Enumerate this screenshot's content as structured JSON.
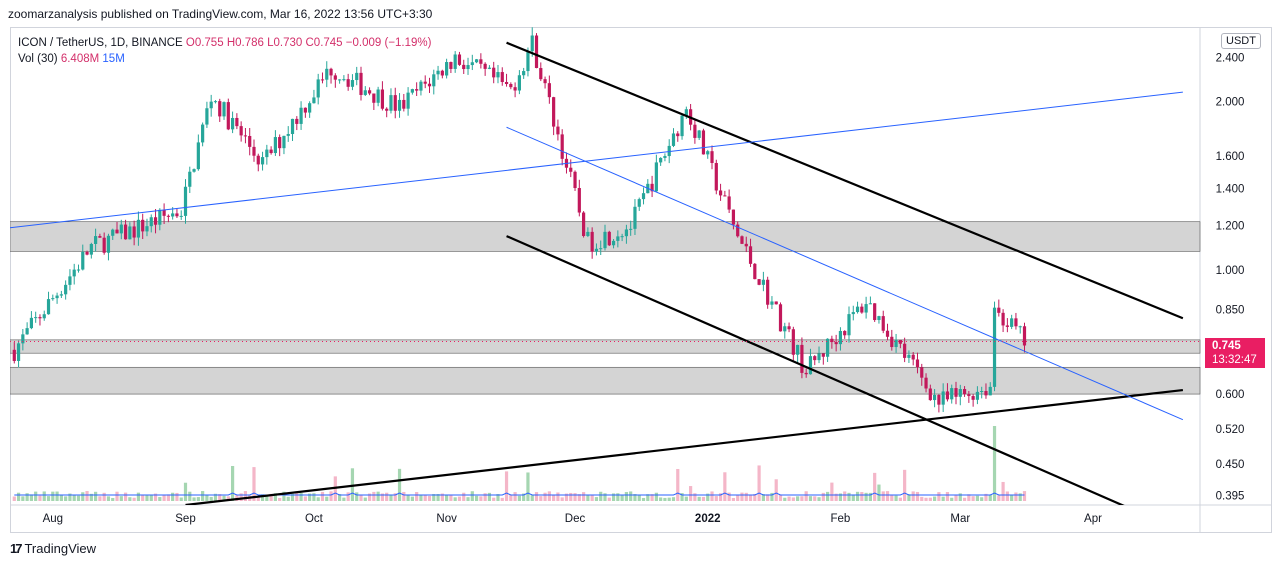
{
  "publisher": "zoomarzanalysis published on TradingView.com, Mar 16, 2022 13:56 UTC+3:30",
  "legend": {
    "symbol": "ICON / TetherUS, 1D, BINANCE",
    "open": "O0.755",
    "high": "H0.786",
    "low": "L0.730",
    "close": "C0.745",
    "change": "−0.009 (−1.19%)",
    "volume_label": "Vol (30)",
    "volume_value": "6.408M",
    "volume_ma": "15M"
  },
  "currency_button": "USDT",
  "price_tag": {
    "price": "0.745",
    "countdown": "13:32:47"
  },
  "branding": "TradingView",
  "colors": {
    "up": "#26a69a",
    "down": "#c2185b",
    "trendline": "#000000",
    "blue_line": "#2962ff",
    "zone": "#cfcfcf",
    "volume_ma": "#2962ff"
  },
  "chart_data": {
    "type": "candlestick",
    "scale": "log",
    "y_ticks": [
      0.395,
      0.45,
      0.52,
      0.6,
      0.85,
      1.0,
      1.2,
      1.4,
      1.6,
      2.0,
      2.4
    ],
    "y_tick_labels": [
      "0.395",
      "0.450",
      "0.520",
      "0.600",
      "0.850",
      "1.000",
      "1.200",
      "1.400",
      "1.600",
      "2.000",
      "2.400"
    ],
    "x_labels": [
      {
        "label": "Aug",
        "date": "2021-08-01"
      },
      {
        "label": "Sep",
        "date": "2021-09-01"
      },
      {
        "label": "Oct",
        "date": "2021-10-01"
      },
      {
        "label": "Nov",
        "date": "2021-11-01"
      },
      {
        "label": "Dec",
        "date": "2021-12-01"
      },
      {
        "label": "2022",
        "date": "2022-01-01"
      },
      {
        "label": "Feb",
        "date": "2022-02-01"
      },
      {
        "label": "Mar",
        "date": "2022-03-01"
      },
      {
        "label": "Apr",
        "date": "2022-04-01"
      }
    ],
    "x_range": [
      "2021-07-22",
      "2022-04-26"
    ],
    "y_range": [
      0.38,
      2.72
    ],
    "current_price": 0.745,
    "key_points": [
      {
        "date": "2021-07-23",
        "price": 0.72
      },
      {
        "date": "2021-08-10",
        "price": 1.1
      },
      {
        "date": "2021-08-31",
        "price": 1.28
      },
      {
        "date": "2021-09-07",
        "price": 2.05
      },
      {
        "date": "2021-09-19",
        "price": 1.55
      },
      {
        "date": "2021-10-05",
        "price": 2.3
      },
      {
        "date": "2021-10-21",
        "price": 1.95
      },
      {
        "date": "2021-11-03",
        "price": 2.4
      },
      {
        "date": "2021-11-16",
        "price": 2.1
      },
      {
        "date": "2021-11-21",
        "price": 2.55
      },
      {
        "date": "2021-12-04",
        "price": 1.12
      },
      {
        "date": "2021-12-14",
        "price": 1.2
      },
      {
        "date": "2021-12-27",
        "price": 1.95
      },
      {
        "date": "2022-01-08",
        "price": 1.15
      },
      {
        "date": "2022-01-24",
        "price": 0.66
      },
      {
        "date": "2022-02-07",
        "price": 0.88
      },
      {
        "date": "2022-02-24",
        "price": 0.58
      },
      {
        "date": "2022-03-08",
        "price": 0.62
      },
      {
        "date": "2022-03-09",
        "price": 0.86
      },
      {
        "date": "2022-03-16",
        "price": 0.745
      }
    ],
    "zones": [
      {
        "low": 1.08,
        "high": 1.22
      },
      {
        "low": 0.6,
        "high": 0.67
      },
      {
        "low": 0.71,
        "high": 0.75
      }
    ],
    "trendlines": [
      {
        "color": "black",
        "from": {
          "date": "2021-11-15",
          "price": 2.55
        },
        "to": {
          "date": "2022-04-22",
          "price": 0.82
        }
      },
      {
        "color": "black",
        "from": {
          "date": "2021-11-15",
          "price": 1.15
        },
        "to": {
          "date": "2022-04-13",
          "price": 0.365
        }
      },
      {
        "color": "black",
        "from": {
          "date": "2021-09-01",
          "price": 0.38
        },
        "to": {
          "date": "2022-04-22",
          "price": 0.61
        }
      },
      {
        "color": "blue",
        "from": {
          "date": "2021-07-22",
          "price": 1.19
        },
        "to": {
          "date": "2022-04-22",
          "price": 2.08
        }
      },
      {
        "color": "blue",
        "from": {
          "date": "2021-11-15",
          "price": 1.8
        },
        "to": {
          "date": "2022-04-22",
          "price": 0.54
        }
      }
    ]
  }
}
